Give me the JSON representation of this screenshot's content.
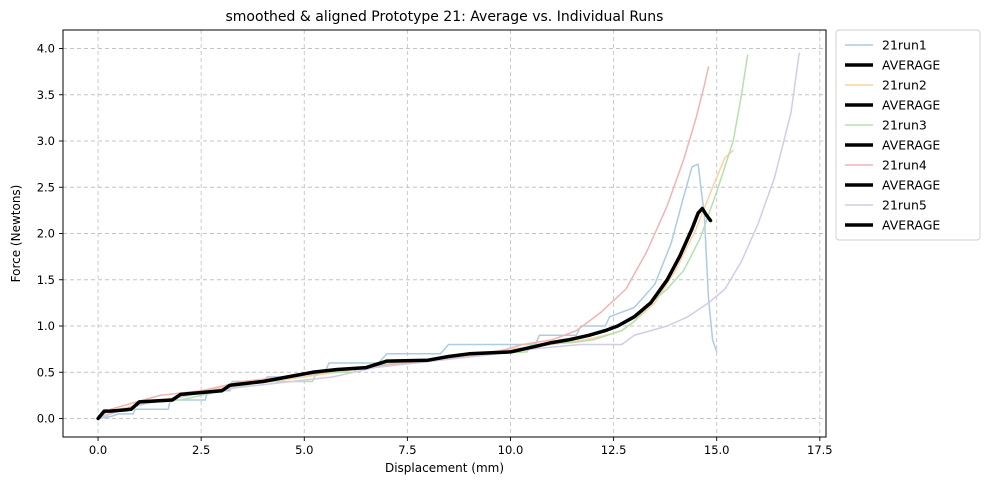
{
  "chart_data": {
    "type": "line",
    "title": "smoothed & aligned Prototype 21: Average vs. Individual Runs",
    "xlabel": "Displacement (mm)",
    "ylabel": "Force (Newtons)",
    "xlim": [
      -0.85,
      17.65
    ],
    "ylim": [
      -0.2,
      4.2
    ],
    "xticks": [
      0.0,
      2.5,
      5.0,
      7.5,
      10.0,
      12.5,
      15.0,
      17.5
    ],
    "xtick_labels": [
      "0.0",
      "2.5",
      "5.0",
      "7.5",
      "10.0",
      "12.5",
      "15.0",
      "17.5"
    ],
    "yticks": [
      0.0,
      0.5,
      1.0,
      1.5,
      2.0,
      2.5,
      3.0,
      3.5,
      4.0
    ],
    "ytick_labels": [
      "0.0",
      "0.5",
      "1.0",
      "1.5",
      "2.0",
      "2.5",
      "3.0",
      "3.5",
      "4.0"
    ],
    "grid": true,
    "legend_position": "outside-right",
    "series": [
      {
        "name": "21run1",
        "color": "#aecbe4",
        "width": 1.5,
        "x": [
          0,
          0.3,
          0.5,
          0.85,
          0.9,
          1.7,
          1.75,
          2.6,
          2.65,
          3.2,
          3.25,
          4.0,
          4.1,
          5.0,
          5.5,
          5.6,
          6.2,
          6.3,
          6.8,
          7.0,
          8.3,
          8.5,
          10.6,
          10.7,
          11.6,
          11.7,
          12.3,
          12.4,
          13.0,
          13.5,
          13.9,
          14.2,
          14.4,
          14.55,
          14.7,
          14.8,
          14.9,
          15.0
        ],
        "y": [
          0,
          0.02,
          0.05,
          0.05,
          0.1,
          0.1,
          0.2,
          0.2,
          0.3,
          0.3,
          0.4,
          0.4,
          0.45,
          0.45,
          0.5,
          0.6,
          0.6,
          0.6,
          0.6,
          0.7,
          0.7,
          0.8,
          0.8,
          0.9,
          0.9,
          1.0,
          1.0,
          1.1,
          1.2,
          1.45,
          1.9,
          2.4,
          2.72,
          2.75,
          2.2,
          1.3,
          0.85,
          0.72
        ]
      },
      {
        "name": "AVERAGE",
        "color": "#000000",
        "width": 3.5,
        "x": [],
        "y": []
      },
      {
        "name": "21run2",
        "color": "#fcd2a4",
        "width": 1.5,
        "x": [
          0,
          0.5,
          1.0,
          1.6,
          2.5,
          3.3,
          4.2,
          5.0,
          5.8,
          6.5,
          7.2,
          8.2,
          9.2,
          10.0,
          11.0,
          11.8,
          12.3,
          12.7,
          13.0,
          13.5,
          14.0,
          14.5,
          14.9,
          15.2,
          15.4
        ],
        "y": [
          0,
          0.1,
          0.15,
          0.2,
          0.3,
          0.35,
          0.4,
          0.45,
          0.5,
          0.55,
          0.6,
          0.65,
          0.7,
          0.75,
          0.8,
          0.85,
          0.9,
          0.95,
          1.05,
          1.25,
          1.6,
          2.05,
          2.5,
          2.82,
          2.9
        ]
      },
      {
        "name": "AVERAGE",
        "color": "#000000",
        "width": 3.5,
        "x": [],
        "y": []
      },
      {
        "name": "21run3",
        "color": "#b5e0ae",
        "width": 1.5,
        "x": [
          0,
          0.5,
          0.8,
          1.5,
          2.0,
          3.0,
          3.5,
          4.0,
          5.2,
          5.3,
          6.2,
          6.3,
          7.2,
          7.3,
          8.5,
          9.5,
          10.4,
          10.5,
          11.5,
          12.0,
          12.7,
          13.0,
          13.4,
          13.8,
          14.2,
          14.6,
          15.0,
          15.4,
          15.6,
          15.75
        ],
        "y": [
          0,
          0.08,
          0.12,
          0.2,
          0.2,
          0.3,
          0.35,
          0.4,
          0.4,
          0.5,
          0.5,
          0.55,
          0.6,
          0.62,
          0.65,
          0.7,
          0.72,
          0.8,
          0.82,
          0.85,
          0.95,
          1.05,
          1.25,
          1.4,
          1.6,
          1.95,
          2.45,
          3.0,
          3.5,
          3.93
        ]
      },
      {
        "name": "AVERAGE",
        "color": "#000000",
        "width": 3.5,
        "x": [],
        "y": []
      },
      {
        "name": "21run4",
        "color": "#f0b4b3",
        "width": 1.5,
        "x": [
          0,
          0.3,
          0.7,
          1.5,
          2.5,
          3.5,
          4.5,
          5.5,
          6.5,
          7.5,
          8.5,
          9.5,
          10.3,
          11.0,
          11.6,
          12.2,
          12.8,
          13.3,
          13.8,
          14.2,
          14.5,
          14.7,
          14.8
        ],
        "y": [
          0,
          0.1,
          0.15,
          0.25,
          0.3,
          0.4,
          0.45,
          0.5,
          0.55,
          0.6,
          0.65,
          0.7,
          0.8,
          0.85,
          0.95,
          1.15,
          1.4,
          1.8,
          2.3,
          2.8,
          3.25,
          3.6,
          3.8
        ]
      },
      {
        "name": "AVERAGE",
        "color": "#000000",
        "width": 3.5,
        "x": [],
        "y": []
      },
      {
        "name": "21run5",
        "color": "#d4cbe7",
        "width": 1.5,
        "x": [
          0,
          0.5,
          1.0,
          1.7,
          2.7,
          3.7,
          4.7,
          5.7,
          6.7,
          7.7,
          8.7,
          9.7,
          10.5,
          11.2,
          11.7,
          12.7,
          13.0,
          13.8,
          14.3,
          14.8,
          15.2,
          15.6,
          16.0,
          16.4,
          16.8,
          17.0
        ],
        "y": [
          0,
          0.08,
          0.15,
          0.2,
          0.3,
          0.35,
          0.4,
          0.45,
          0.55,
          0.6,
          0.65,
          0.7,
          0.75,
          0.78,
          0.8,
          0.8,
          0.9,
          1.0,
          1.1,
          1.25,
          1.4,
          1.7,
          2.1,
          2.6,
          3.3,
          3.95
        ]
      },
      {
        "name": "AVERAGE",
        "color": "#000000",
        "width": 3.5,
        "x": [
          0,
          0.15,
          0.3,
          0.8,
          1.0,
          1.8,
          2.0,
          3.0,
          3.2,
          4.0,
          4.6,
          5.2,
          5.8,
          6.5,
          7.0,
          8.0,
          8.5,
          9.0,
          10.0,
          10.6,
          11.0,
          11.4,
          11.9,
          12.3,
          12.6,
          13.0,
          13.4,
          13.8,
          14.1,
          14.4,
          14.55,
          14.65,
          14.75,
          14.85
        ],
        "y": [
          0,
          0.08,
          0.08,
          0.1,
          0.18,
          0.2,
          0.26,
          0.3,
          0.36,
          0.4,
          0.45,
          0.5,
          0.53,
          0.55,
          0.62,
          0.63,
          0.67,
          0.7,
          0.72,
          0.78,
          0.82,
          0.85,
          0.9,
          0.95,
          1.0,
          1.1,
          1.25,
          1.5,
          1.75,
          2.05,
          2.22,
          2.27,
          2.2,
          2.14
        ]
      }
    ]
  }
}
